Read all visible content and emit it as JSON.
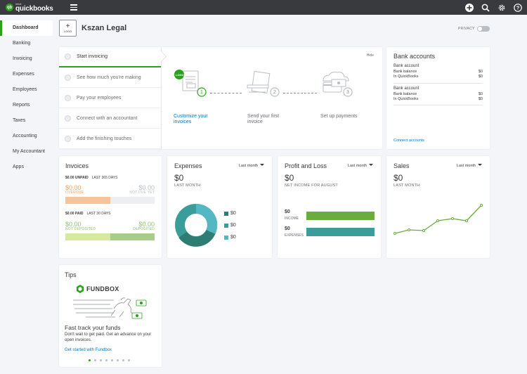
{
  "brand": {
    "intuit": "intuit",
    "name": "quickbooks",
    "accent": "#2ca01c"
  },
  "topbar": {
    "icons": [
      "plus-circle-icon",
      "search-icon",
      "gear-icon",
      "help-icon"
    ]
  },
  "sidebar": {
    "items": [
      {
        "label": "Dashboard",
        "active": true
      },
      {
        "label": "Banking"
      },
      {
        "label": "Invoicing"
      },
      {
        "label": "Expenses"
      },
      {
        "label": "Employees"
      },
      {
        "label": "Reports"
      },
      {
        "label": "Taxes"
      },
      {
        "label": "Accounting"
      },
      {
        "label": "My Accountant"
      },
      {
        "label": "Apps"
      }
    ]
  },
  "company": {
    "logo_plus": "+",
    "logo_label": "LOGO",
    "name": "Kszan Legal"
  },
  "privacy": {
    "label": "PRIVACY"
  },
  "setup": {
    "hide": "Hide",
    "steps": [
      "Start invoicing",
      "See how much you're making",
      "Pay your employees",
      "Connect with an accountant",
      "Add the finishing touches"
    ],
    "illustrations": [
      {
        "num": "1",
        "caption": "Customize your invoices",
        "badge": "LOGO"
      },
      {
        "num": "2",
        "caption": "Send your first invoice"
      },
      {
        "num": "3",
        "caption": "Set up payments"
      }
    ]
  },
  "bank": {
    "title": "Bank accounts",
    "accounts": [
      {
        "name": "Bank account",
        "bank_balance_label": "Bank balance",
        "bank_balance": "$0",
        "qb_label": "In QuickBooks",
        "qb_balance": "$0"
      },
      {
        "name": "Bank account",
        "bank_balance_label": "Bank balance",
        "bank_balance": "$0",
        "qb_label": "In QuickBooks",
        "qb_balance": "$0"
      }
    ],
    "connect": "Connect accounts"
  },
  "invoices": {
    "title": "Invoices",
    "unpaid_amount": "$0.00 UNPAID",
    "unpaid_period": "LAST 365 DAYS",
    "overdue_amount": "$0.00",
    "overdue_label": "OVERDUE",
    "notdue_amount": "$0.00",
    "notdue_label": "NOT DUE YET",
    "paid_amount": "$0.00 PAID",
    "paid_period": "LAST 30 DAYS",
    "notdeposited_amount": "$0.00",
    "notdeposited_label": "NOT DEPOSITED",
    "deposited_amount": "$0.00",
    "deposited_label": "DEPOSITED",
    "colors": {
      "overdue": "#f7c49a",
      "not_deposited": "#d5e9a0",
      "deposited": "#a8cc8c",
      "amount_overdue": "#f4a261",
      "amount_deposited": "#8cc56a"
    }
  },
  "expenses": {
    "title": "Expenses",
    "period": "Last month",
    "total": "$0",
    "sub": "LAST MONTH",
    "legend": [
      {
        "value": "$0",
        "color": "#2d7d72"
      },
      {
        "value": "$0",
        "color": "#3a9d99"
      },
      {
        "value": "$0",
        "color": "#53b7c4"
      }
    ]
  },
  "profit": {
    "title": "Profit and Loss",
    "period": "Last month",
    "total": "$0",
    "sub": "NET INCOME FOR AUGUST",
    "income_amount": "$0",
    "income_label": "INCOME",
    "expenses_amount": "$0",
    "expenses_label": "EXPENSES",
    "colors": {
      "income": "#6aac3e",
      "expenses": "#3a9d99"
    }
  },
  "sales": {
    "title": "Sales",
    "period": "Last month",
    "total": "$0",
    "sub": "LAST MONTH",
    "line_color": "#6aac3e"
  },
  "tips": {
    "title": "Tips",
    "brand": "FUNDBOX",
    "heading": "Fast track your funds",
    "body": "Don't wait to get paid. Get an advance on your open invoices.",
    "link": "Get started with Fundbox",
    "pages": 8,
    "current_page": 1
  }
}
